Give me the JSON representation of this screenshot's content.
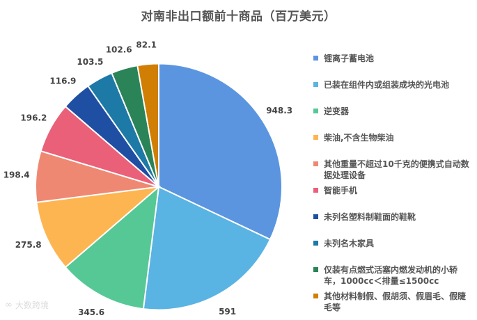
{
  "chart_data": {
    "type": "pie",
    "title": "对南非出口额前十商品（百万美元）",
    "unit": "百万美元",
    "start_angle": "12 o'clock, clockwise",
    "categories": [
      "锂离子蓄电池",
      "已装在组件内或组装成块的光电池",
      "逆变器",
      "柴油,不含生物柴油",
      "其他重量不超过10千克的便携式自动数据处理设备",
      "智能手机",
      "未列名塑料制鞋面的鞋靴",
      "未列名木家具",
      "仅装有点燃式活塞内燃发动机的小轿车，1000cc＜排量≤1500cc",
      "其他材料制假、假胡须、假眉毛、假睫毛等"
    ],
    "values": [
      948.3,
      591,
      345.6,
      275.8,
      198.4,
      196.2,
      116.9,
      103.5,
      102.6,
      82.1
    ],
    "value_labels": [
      "948.3",
      "591",
      "345.6",
      "275.8",
      "198.4",
      "196.2",
      "116.9",
      "103.5",
      "102.6",
      "82.1"
    ],
    "colors": [
      "#5b95e0",
      "#59b3e3",
      "#55c896",
      "#fdb552",
      "#ef8872",
      "#ea6079",
      "#1f4fa3",
      "#1d79a6",
      "#2a8458",
      "#d17e05"
    ],
    "legend_position": "right"
  },
  "legend": {
    "items": [
      {
        "label": "锂离子蓄电池",
        "color": "#5b95e0"
      },
      {
        "label": "已装在组件内或组装成块的光电池",
        "color": "#59b3e3"
      },
      {
        "label": "逆变器",
        "color": "#55c896"
      },
      {
        "label": "柴油,不含生物柴油",
        "color": "#fdb552"
      },
      {
        "label": "其他重量不超过10千克的便携式自动数据处理设备",
        "color": "#ef8872"
      },
      {
        "label": "智能手机",
        "color": "#ea6079"
      },
      {
        "label": "未列名塑料制鞋面的鞋靴",
        "color": "#1f4fa3"
      },
      {
        "label": "未列名木家具",
        "color": "#1d79a6"
      },
      {
        "label": "仅装有点燃式活塞内燃发动机的小轿车，1000cc＜排量≤1500cc",
        "color": "#2a8458"
      },
      {
        "label": "其他材料制假、假胡须、假眉毛、假睫毛等",
        "color": "#d17e05"
      }
    ]
  },
  "watermark": {
    "text": "大数跨境",
    "logo": "∞"
  }
}
